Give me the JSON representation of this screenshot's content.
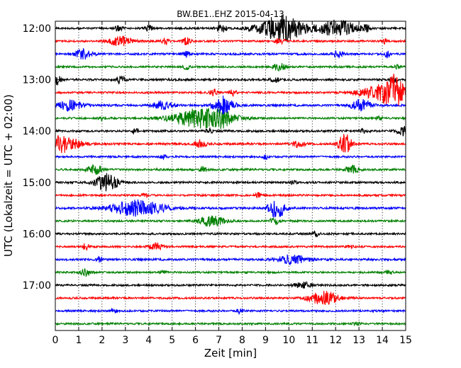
{
  "chart_data": {
    "type": "line",
    "title": "BW.BE1..EHZ 2015-04-13",
    "xlabel": "Zeit  [min]",
    "ylabel": "UTC (Lokalzeit = UTC + 02:00)",
    "xlim": [
      0,
      15
    ],
    "x_ticks": [
      "0",
      "1",
      "2",
      "3",
      "4",
      "5",
      "6",
      "7",
      "8",
      "9",
      "10",
      "11",
      "12",
      "13",
      "14",
      "15"
    ],
    "y_tick_labels": [
      "12:00",
      "13:00",
      "14:00",
      "15:00",
      "16:00",
      "17:00"
    ],
    "grid": "vertical dotted",
    "trace_colors": [
      "#000000",
      "#ff0000",
      "#0000ff",
      "#008000"
    ],
    "traces": [
      {
        "start": "12:00",
        "noise": 1.3,
        "events": [
          [
            2.7,
            4,
            0.12
          ],
          [
            4.0,
            4,
            0.12
          ],
          [
            7.1,
            6,
            0.15
          ],
          [
            9.7,
            18,
            0.7
          ],
          [
            12.1,
            12,
            0.55
          ],
          [
            13.3,
            5,
            0.1
          ]
        ]
      },
      {
        "start": "12:15",
        "noise": 1.3,
        "events": [
          [
            2.8,
            7,
            0.35
          ],
          [
            4.7,
            5,
            0.1
          ],
          [
            5.6,
            5,
            0.12
          ],
          [
            9.6,
            4,
            0.15
          ],
          [
            14.1,
            3,
            0.1
          ]
        ]
      },
      {
        "start": "12:30",
        "noise": 1.4,
        "events": [
          [
            1.2,
            7,
            0.25
          ],
          [
            5.6,
            4,
            0.1
          ],
          [
            12.1,
            5,
            0.15
          ],
          [
            14.2,
            4,
            0.1
          ]
        ]
      },
      {
        "start": "12:45",
        "noise": 1.3,
        "events": [
          [
            5.6,
            3,
            0.1
          ],
          [
            9.6,
            5,
            0.2
          ],
          [
            14.6,
            3,
            0.1
          ]
        ]
      },
      {
        "start": "13:00",
        "noise": 1.4,
        "events": [
          [
            0.1,
            7,
            0.12
          ],
          [
            2.8,
            5,
            0.15
          ],
          [
            9.4,
            4,
            0.12
          ],
          [
            14.5,
            3,
            0.1
          ]
        ]
      },
      {
        "start": "13:15",
        "noise": 1.3,
        "events": [
          [
            6.8,
            5,
            0.12
          ],
          [
            7.6,
            4,
            0.1
          ],
          [
            14.1,
            11,
            0.7
          ],
          [
            14.5,
            16,
            0.25
          ]
        ]
      },
      {
        "start": "13:30",
        "noise": 1.4,
        "events": [
          [
            0.6,
            7,
            0.4
          ],
          [
            4.6,
            6,
            0.3
          ],
          [
            7.2,
            13,
            0.3
          ],
          [
            13.1,
            8,
            0.3
          ]
        ]
      },
      {
        "start": "13:45",
        "noise": 1.3,
        "events": [
          [
            2.0,
            3,
            0.1
          ],
          [
            6.3,
            14,
            0.9
          ],
          [
            7.2,
            5,
            0.2
          ],
          [
            13.8,
            3,
            0.1
          ]
        ]
      },
      {
        "start": "14:00",
        "noise": 1.4,
        "events": [
          [
            3.4,
            4,
            0.1
          ],
          [
            6.6,
            4,
            0.1
          ],
          [
            13.2,
            3,
            0.1
          ],
          [
            14.9,
            6,
            0.2
          ]
        ]
      },
      {
        "start": "14:15",
        "noise": 1.4,
        "events": [
          [
            0.3,
            12,
            0.5
          ],
          [
            6.2,
            7,
            0.15
          ],
          [
            10.4,
            4,
            0.2
          ],
          [
            12.4,
            14,
            0.2
          ]
        ]
      },
      {
        "start": "14:30",
        "noise": 1.3,
        "events": [
          [
            4.6,
            3,
            0.1
          ],
          [
            9.0,
            3,
            0.1
          ]
        ]
      },
      {
        "start": "14:45",
        "noise": 1.4,
        "events": [
          [
            1.7,
            8,
            0.2
          ],
          [
            6.3,
            4,
            0.1
          ],
          [
            12.7,
            5,
            0.2
          ]
        ]
      },
      {
        "start": "15:00",
        "noise": 1.4,
        "events": [
          [
            2.2,
            12,
            0.35
          ],
          [
            10.2,
            3,
            0.1
          ]
        ]
      },
      {
        "start": "15:15",
        "noise": 1.3,
        "events": [
          [
            3.8,
            3,
            0.1
          ],
          [
            8.7,
            3,
            0.1
          ]
        ]
      },
      {
        "start": "15:30",
        "noise": 1.4,
        "events": [
          [
            3.5,
            11,
            0.8
          ],
          [
            9.5,
            14,
            0.25
          ]
        ]
      },
      {
        "start": "15:45",
        "noise": 1.3,
        "events": [
          [
            6.7,
            7,
            0.4
          ],
          [
            9.4,
            4,
            0.15
          ]
        ]
      },
      {
        "start": "16:00",
        "noise": 1.4,
        "events": [
          [
            11.2,
            4,
            0.1
          ]
        ]
      },
      {
        "start": "16:15",
        "noise": 1.3,
        "events": [
          [
            1.3,
            5,
            0.1
          ],
          [
            4.3,
            5,
            0.2
          ],
          [
            12.6,
            3,
            0.1
          ]
        ]
      },
      {
        "start": "16:30",
        "noise": 1.4,
        "events": [
          [
            1.9,
            4,
            0.1
          ],
          [
            10.2,
            6,
            0.5
          ]
        ]
      },
      {
        "start": "16:45",
        "noise": 1.3,
        "events": [
          [
            1.3,
            5,
            0.15
          ],
          [
            4.6,
            3,
            0.1
          ],
          [
            14.3,
            3,
            0.1
          ]
        ]
      },
      {
        "start": "17:00",
        "noise": 1.3,
        "events": [
          [
            10.6,
            4,
            0.25
          ]
        ]
      },
      {
        "start": "17:15",
        "noise": 1.3,
        "events": [
          [
            11.5,
            9,
            0.45
          ]
        ]
      },
      {
        "start": "17:30",
        "noise": 1.3,
        "events": [
          [
            2.5,
            3,
            0.1
          ],
          [
            7.9,
            4,
            0.1
          ]
        ]
      },
      {
        "start": "17:45",
        "noise": 1.3,
        "events": [
          [
            12.9,
            3,
            0.1
          ]
        ]
      }
    ]
  }
}
